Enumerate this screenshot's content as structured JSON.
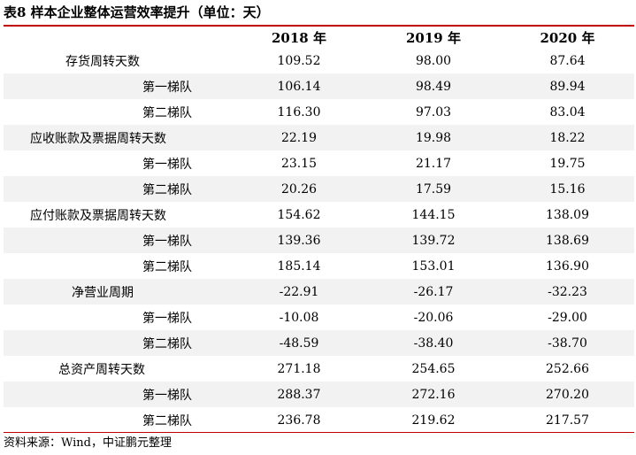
{
  "title": "表8  样本企业整体运营效率提升（单位：天）",
  "table": {
    "headers": [
      "",
      "2018 年",
      "2019 年",
      "2020 年"
    ],
    "rows": [
      {
        "label": "存货周转天数",
        "level": 0,
        "indent": 70,
        "values": [
          "109.52",
          "98.00",
          "87.64"
        ]
      },
      {
        "label": "第一梯队",
        "level": 1,
        "indent": 157,
        "values": [
          "106.14",
          "98.49",
          "89.94"
        ]
      },
      {
        "label": "第二梯队",
        "level": 1,
        "indent": 157,
        "values": [
          "116.30",
          "97.03",
          "83.04"
        ]
      },
      {
        "label": "应收账款及票据周转天数",
        "level": 0,
        "indent": 30,
        "values": [
          "22.19",
          "19.98",
          "18.22"
        ]
      },
      {
        "label": "第一梯队",
        "level": 1,
        "indent": 157,
        "values": [
          "23.15",
          "21.17",
          "19.75"
        ]
      },
      {
        "label": "第二梯队",
        "level": 1,
        "indent": 157,
        "values": [
          "20.26",
          "17.59",
          "15.16"
        ]
      },
      {
        "label": "应付账款及票据周转天数",
        "level": 0,
        "indent": 30,
        "values": [
          "154.62",
          "144.15",
          "138.09"
        ]
      },
      {
        "label": "第一梯队",
        "level": 1,
        "indent": 157,
        "values": [
          "139.36",
          "139.72",
          "138.69"
        ]
      },
      {
        "label": "第二梯队",
        "level": 1,
        "indent": 157,
        "values": [
          "185.14",
          "153.01",
          "136.90"
        ]
      },
      {
        "label": "净营业周期",
        "level": 0,
        "indent": 77,
        "values": [
          "-22.91",
          "-26.17",
          "-32.23"
        ]
      },
      {
        "label": "第一梯队",
        "level": 1,
        "indent": 157,
        "values": [
          "-10.08",
          "-20.06",
          "-29.00"
        ]
      },
      {
        "label": "第二梯队",
        "level": 1,
        "indent": 157,
        "values": [
          "-48.59",
          "-38.40",
          "-38.70"
        ]
      },
      {
        "label": "总资产周转天数",
        "level": 0,
        "indent": 62,
        "values": [
          "271.18",
          "254.65",
          "252.66"
        ]
      },
      {
        "label": "第一梯队",
        "level": 1,
        "indent": 157,
        "values": [
          "288.37",
          "272.16",
          "270.20"
        ]
      },
      {
        "label": "第二梯队",
        "level": 1,
        "indent": 157,
        "values": [
          "236.78",
          "219.62",
          "217.57"
        ]
      }
    ]
  },
  "source": "资料来源：Wind，中证鹏元整理",
  "colors": {
    "accent_rule": "#c00000",
    "alt_row": "#f2f2f2"
  }
}
